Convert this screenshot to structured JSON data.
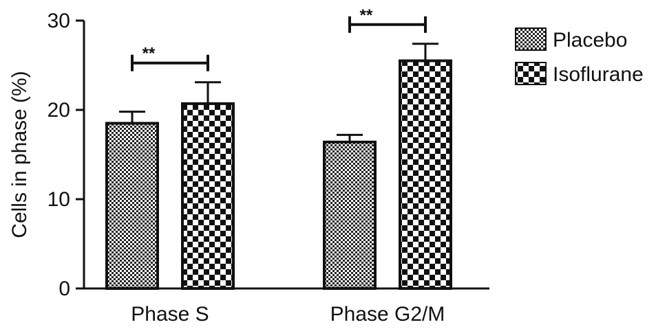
{
  "chart_data": {
    "type": "bar",
    "title": "",
    "xlabel": "",
    "ylabel": "Cells in phase (%)",
    "ylim": [
      0,
      30
    ],
    "yticks": [
      0,
      10,
      20,
      30
    ],
    "grid": false,
    "legend_position": "right",
    "categories": [
      "Phase S",
      "Phase G2/M"
    ],
    "series": [
      {
        "name": "Placebo",
        "values": [
          18.5,
          16.4
        ],
        "errors": [
          1.3,
          0.8
        ],
        "pattern": "fine-checker"
      },
      {
        "name": "Isoflurane",
        "values": [
          20.7,
          25.5
        ],
        "errors": [
          2.4,
          1.9
        ],
        "pattern": "coarse-checker"
      }
    ],
    "annotations": [
      {
        "category_index": 0,
        "text": "**"
      },
      {
        "category_index": 1,
        "text": "**"
      }
    ]
  }
}
